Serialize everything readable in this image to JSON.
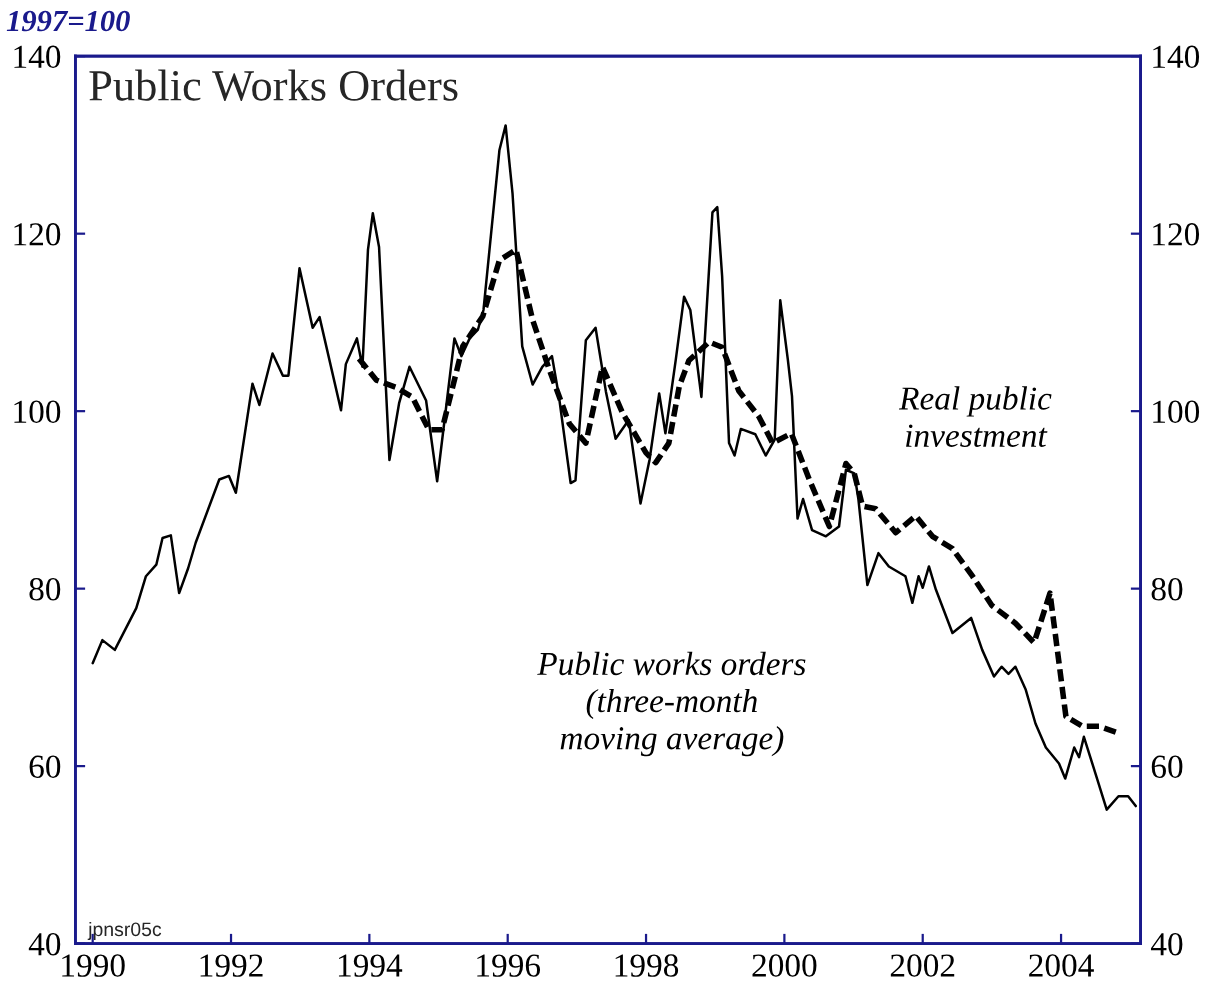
{
  "chart_data": {
    "type": "line",
    "title": "Public Works Orders",
    "ylabel": "1997=100",
    "annotations": [
      "jpnsr05c"
    ],
    "xlim": [
      1989.75,
      2005.15
    ],
    "xticks": [
      1990,
      1992,
      1994,
      1996,
      1998,
      2000,
      2002,
      2004
    ],
    "ylim": [
      40,
      140
    ],
    "yticks": [
      40,
      60,
      80,
      100,
      120,
      140
    ],
    "y2lim": [
      40,
      140
    ],
    "y2ticks": [
      40,
      60,
      80,
      100,
      120,
      140
    ],
    "grid": false,
    "legend": false,
    "series": [
      {
        "name": "Public works orders\n(three-month\nmoving average)",
        "color": "#000000",
        "line_style": "solid",
        "x": [
          1990.0,
          1990.14,
          1990.32,
          1990.63,
          1990.77,
          1990.92,
          1991.01,
          1991.13,
          1991.25,
          1991.38,
          1991.49,
          1991.83,
          1991.97,
          1992.07,
          1992.31,
          1992.41,
          1992.6,
          1992.75,
          1992.83,
          1992.99,
          1993.18,
          1993.28,
          1993.59,
          1993.66,
          1993.82,
          1993.9,
          1993.98,
          1994.05,
          1994.14,
          1994.29,
          1994.43,
          1994.58,
          1994.82,
          1994.98,
          1995.23,
          1995.33,
          1995.45,
          1995.57,
          1995.65,
          1995.88,
          1995.97,
          1996.07,
          1996.21,
          1996.36,
          1996.5,
          1996.64,
          1996.74,
          1996.91,
          1996.98,
          1997.13,
          1997.27,
          1997.42,
          1997.56,
          1997.75,
          1997.92,
          1998.05,
          1998.19,
          1998.28,
          1998.43,
          1998.55,
          1998.64,
          1998.8,
          1998.96,
          1999.03,
          1999.1,
          1999.2,
          1999.28,
          1999.37,
          1999.58,
          1999.73,
          1999.86,
          1999.94,
          2000.05,
          2000.11,
          2000.19,
          2000.27,
          2000.4,
          2000.6,
          2000.79,
          2000.89,
          2001.01,
          2001.07,
          2001.2,
          2001.36,
          2001.51,
          2001.75,
          2001.85,
          2001.94,
          2002.0,
          2002.09,
          2002.19,
          2002.43,
          2002.7,
          2002.86,
          2003.03,
          2003.14,
          2003.24,
          2003.34,
          2003.49,
          2003.63,
          2003.78,
          2003.97,
          2004.06,
          2004.19,
          2004.26,
          2004.33,
          2004.5,
          2004.66,
          2004.83,
          2004.97,
          2005.08
        ],
        "values": [
          71.6,
          74.2,
          73.1,
          77.8,
          81.4,
          82.7,
          85.7,
          86,
          79.5,
          82.3,
          85.2,
          92.3,
          92.7,
          90.8,
          103.1,
          100.7,
          106.5,
          104,
          104,
          116.1,
          109.4,
          110.6,
          100.1,
          105.3,
          108.2,
          105,
          118.2,
          122.3,
          118.5,
          94.5,
          100.9,
          105,
          101.2,
          92.1,
          108.2,
          106.2,
          108.2,
          109.2,
          111.4,
          129.4,
          132.2,
          124.5,
          107.3,
          103,
          105,
          106.2,
          101.7,
          91.9,
          92.2,
          108,
          109.4,
          102.2,
          96.9,
          99,
          89.6,
          94.5,
          102,
          97.5,
          105.8,
          112.9,
          111.4,
          101.6,
          122.4,
          123,
          115.2,
          96.4,
          95,
          98,
          97.4,
          95,
          96.8,
          112.5,
          105.8,
          101.7,
          87.9,
          90.1,
          86.6,
          85.9,
          87,
          93.4,
          93,
          90.1,
          80.4,
          84,
          82.5,
          81.4,
          78.4,
          81.4,
          80.1,
          82.5,
          79.9,
          75,
          76.7,
          73.1,
          70.1,
          71.2,
          70.4,
          71.2,
          68.6,
          64.8,
          62.1,
          60.3,
          58.6,
          62.1,
          61,
          63.3,
          59.1,
          55.1,
          56.6,
          56.6,
          55.5
        ]
      },
      {
        "name": "Real public\ninvestment",
        "color": "#000000",
        "line_style": "dashed",
        "x": [
          1993.85,
          1994.1,
          1994.38,
          1994.62,
          1994.86,
          1995.05,
          1995.35,
          1995.64,
          1995.88,
          1996.12,
          1996.36,
          1996.6,
          1996.89,
          1997.13,
          1997.37,
          1997.66,
          1998.0,
          1998.14,
          1998.33,
          1998.48,
          1998.62,
          1998.91,
          1999.1,
          1999.34,
          1999.63,
          1999.83,
          2000.1,
          2000.36,
          2000.65,
          2000.89,
          2001.01,
          2001.13,
          2001.32,
          2001.61,
          2001.9,
          2002.14,
          2002.43,
          2002.72,
          2003.0,
          2003.34,
          2003.61,
          2003.84,
          2004.07,
          2004.31,
          2004.55,
          2004.84
        ],
        "values": [
          105.9,
          103.5,
          102.7,
          101.6,
          97.9,
          97.9,
          107.3,
          110.7,
          117,
          118.2,
          110.3,
          104.7,
          98.6,
          96.4,
          105,
          99.8,
          95.3,
          94.2,
          96.4,
          102.8,
          105.7,
          107.8,
          107.2,
          102.3,
          99.4,
          96.4,
          97.5,
          92.3,
          87,
          94.1,
          93,
          89.3,
          89,
          86.3,
          88.2,
          85.9,
          84.5,
          81.4,
          78.1,
          76.1,
          73.9,
          79.5,
          65.6,
          64.5,
          64.5,
          63.7
        ]
      }
    ]
  }
}
